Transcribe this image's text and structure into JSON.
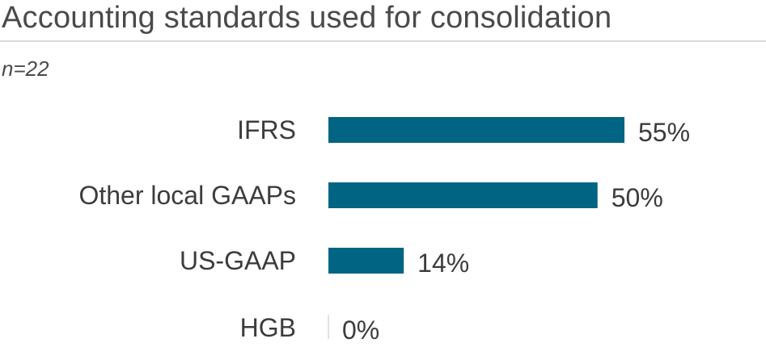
{
  "header": {
    "title": "Accounting standards used for consolidation",
    "subtitle": "n=22"
  },
  "colors": {
    "bar": "#006482",
    "axis": "#d9d9d9"
  },
  "chart_data": {
    "type": "bar",
    "orientation": "horizontal",
    "title": "Accounting standards used for consolidation",
    "subtitle": "n=22",
    "categories": [
      "IFRS",
      "Other local GAAPs",
      "US-GAAP",
      "HGB"
    ],
    "values": [
      55,
      50,
      14,
      0
    ],
    "value_labels": [
      "55%",
      "50%",
      "14%",
      "0%"
    ],
    "unit": "%",
    "xlim": [
      0,
      55
    ],
    "grid": false,
    "legend": "none"
  }
}
